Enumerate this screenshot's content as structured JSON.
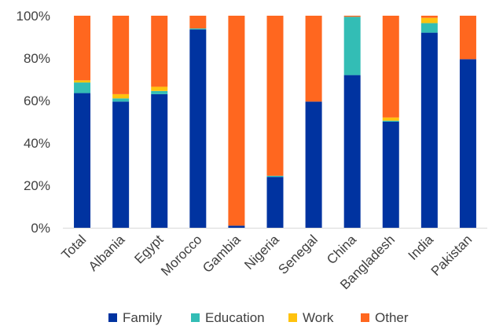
{
  "chart_data": {
    "type": "bar",
    "stacked": true,
    "percent_stacked": true,
    "categories": [
      "Total",
      "Albania",
      "Egypt",
      "Morocco",
      "Gambia",
      "Nigeria",
      "Senegal",
      "China",
      "Bangladesh",
      "India",
      "Pakistan"
    ],
    "series": [
      {
        "name": "Family",
        "color": "#0033a0",
        "values": [
          63.5,
          59.5,
          63,
          93.5,
          1,
          24,
          59.5,
          72,
          50,
          92,
          79.5
        ]
      },
      {
        "name": "Education",
        "color": "#33bdb5",
        "values": [
          5,
          1.5,
          1.5,
          0.5,
          0,
          0.5,
          0,
          27.5,
          0.5,
          4.5,
          0
        ]
      },
      {
        "name": "Work",
        "color": "#ffc20e",
        "values": [
          1,
          2,
          2,
          0,
          0,
          0,
          0,
          0,
          1.5,
          2.5,
          0
        ]
      },
      {
        "name": "Other",
        "color": "#ff671f",
        "values": [
          30.5,
          37,
          33.5,
          6,
          99,
          75.5,
          40.5,
          0.5,
          48,
          1,
          20.5
        ]
      }
    ],
    "ylim": [
      0,
      100
    ],
    "yticks": [
      "0%",
      "20%",
      "40%",
      "60%",
      "80%",
      "100%"
    ],
    "title": "",
    "xlabel": "",
    "ylabel": "",
    "grid": false,
    "legend_position": "bottom"
  }
}
